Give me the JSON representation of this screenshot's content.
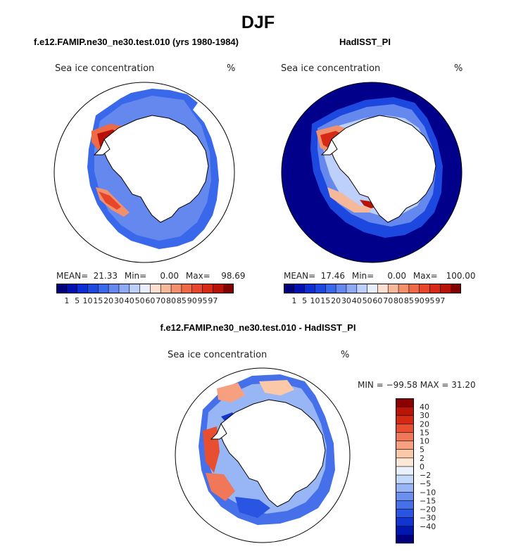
{
  "page_title": "DJF",
  "colors": {
    "ocean_dark": "#00008b",
    "land": "#ffffff",
    "outline": "#000000",
    "palette_abs": [
      "#00007a",
      "#0010b0",
      "#0a2ed4",
      "#1d48e0",
      "#3a68ea",
      "#6488ee",
      "#8eaaf4",
      "#bcd0fb",
      "#e8eefa",
      "#fbdfd0",
      "#f6b89a",
      "#f3906c",
      "#ee6a46",
      "#e8462a",
      "#d72a16",
      "#b81208",
      "#800000"
    ],
    "palette_diff": [
      "#000080",
      "#0018b0",
      "#1234d0",
      "#2a54e2",
      "#4670ea",
      "#6c90f0",
      "#98b6f6",
      "#c4d8fa",
      "#ebf1fb",
      "#fde8d8",
      "#fbc8a8",
      "#f6a080",
      "#f07858",
      "#e84e30",
      "#d42a14",
      "#b81408",
      "#8b0000"
    ]
  },
  "panels": [
    {
      "id": "model",
      "title": "f.e12.FAMIP.ne30_ne30.test.010 (yrs 1980-1984)",
      "variable_label": "Sea ice concentration",
      "unit": "%",
      "stats": {
        "mean_label": "MEAN=",
        "mean": "21.33",
        "min_label": "Min=",
        "min": "0.00",
        "max_label": "Max=",
        "max": "98.69"
      },
      "colorbar_labels": [
        "1",
        "5",
        "10",
        "15",
        "20",
        "30",
        "40",
        "50",
        "60",
        "70",
        "80",
        "85",
        "90",
        "95",
        "97"
      ]
    },
    {
      "id": "obs",
      "title": "HadISST_PI",
      "variable_label": "Sea ice concentration",
      "unit": "%",
      "stats": {
        "mean_label": "MEAN=",
        "mean": "17.46",
        "min_label": "Min=",
        "min": "0.00",
        "max_label": "Max=",
        "max": "100.00"
      },
      "colorbar_labels": [
        "1",
        "5",
        "10",
        "15",
        "20",
        "30",
        "40",
        "50",
        "60",
        "70",
        "80",
        "85",
        "90",
        "95",
        "97"
      ]
    },
    {
      "id": "diff",
      "title": "f.e12.FAMIP.ne30_ne30.test.010 - HadISST_PI",
      "variable_label": "Sea ice concentration",
      "unit": "%",
      "stats_text": "MIN = −99.58 MAX =  31.20",
      "colorbar_labels": [
        "40",
        "30",
        "20",
        "15",
        "10",
        "5",
        "2",
        "0",
        "−2",
        "−5",
        "−10",
        "−15",
        "−20",
        "−30",
        "−40"
      ]
    }
  ],
  "chart_data": [
    {
      "type": "heatmap",
      "projection": "south polar stereographic",
      "title": "f.e12.FAMIP.ne30_ne30.test.010 (yrs 1980-1984)",
      "variable": "Sea ice concentration",
      "units": "%",
      "statistics": {
        "mean": 21.33,
        "min": 0.0,
        "max": 98.69
      },
      "contour_levels": [
        1,
        5,
        10,
        15,
        20,
        30,
        40,
        50,
        60,
        70,
        80,
        85,
        90,
        95,
        97
      ]
    },
    {
      "type": "heatmap",
      "projection": "south polar stereographic",
      "title": "HadISST_PI",
      "variable": "Sea ice concentration",
      "units": "%",
      "statistics": {
        "mean": 17.46,
        "min": 0.0,
        "max": 100.0
      },
      "contour_levels": [
        1,
        5,
        10,
        15,
        20,
        30,
        40,
        50,
        60,
        70,
        80,
        85,
        90,
        95,
        97
      ]
    },
    {
      "type": "heatmap",
      "projection": "south polar stereographic",
      "title": "f.e12.FAMIP.ne30_ne30.test.010 - HadISST_PI",
      "variable": "Sea ice concentration",
      "units": "%",
      "statistics": {
        "min": -99.58,
        "max": 31.2
      },
      "contour_levels": [
        -40,
        -30,
        -20,
        -15,
        -10,
        -5,
        -2,
        0,
        2,
        5,
        10,
        15,
        20,
        30,
        40
      ]
    }
  ]
}
